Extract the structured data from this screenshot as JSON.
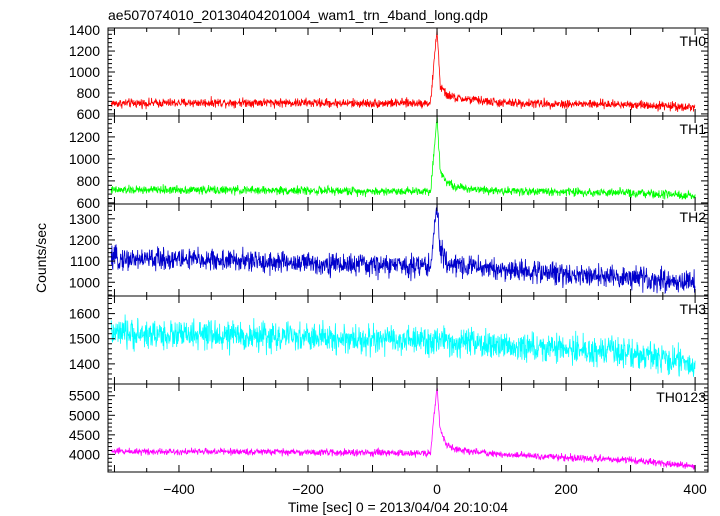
{
  "chart_data": {
    "type": "line",
    "title": "ae507074010_20130404201004_wam1_trn_4band_long.qdp",
    "xlabel": "Time [sec] 0 = 2013/04/04 20:10:04",
    "ylabel": "Counts/sec",
    "xlim": [
      -510,
      420
    ],
    "xticks": [
      -400,
      -200,
      0,
      200,
      400
    ],
    "xtick_labels": [
      "−400",
      "−200",
      "0",
      "200",
      "400"
    ],
    "grid": false,
    "legend": "none",
    "panels": [
      {
        "label": "TH0",
        "color": "#ff0000",
        "ylim": [
          580,
          1420
        ],
        "yticks": [
          600,
          800,
          1000,
          1200,
          1400
        ],
        "yticks_labeled": [
          600,
          800,
          1000,
          1200,
          1400
        ],
        "points": [
          [
            -505,
            700
          ],
          [
            -400,
            705
          ],
          [
            -300,
            710
          ],
          [
            -200,
            705
          ],
          [
            -100,
            700
          ],
          [
            -10,
            705
          ],
          [
            0,
            1420
          ],
          [
            5,
            860
          ],
          [
            15,
            780
          ],
          [
            30,
            750
          ],
          [
            100,
            705
          ],
          [
            200,
            695
          ],
          [
            300,
            690
          ],
          [
            400,
            665
          ]
        ],
        "noise": 45
      },
      {
        "label": "TH1",
        "color": "#00ff00",
        "ylim": [
          590,
          1390
        ],
        "yticks": [
          600,
          800,
          1000,
          1200
        ],
        "yticks_labeled": [
          600,
          800,
          1000,
          1200
        ],
        "points": [
          [
            -505,
            715
          ],
          [
            -400,
            720
          ],
          [
            -300,
            715
          ],
          [
            -200,
            712
          ],
          [
            -100,
            705
          ],
          [
            -10,
            710
          ],
          [
            0,
            1380
          ],
          [
            5,
            900
          ],
          [
            15,
            790
          ],
          [
            30,
            740
          ],
          [
            100,
            710
          ],
          [
            200,
            700
          ],
          [
            300,
            690
          ],
          [
            400,
            660
          ]
        ],
        "noise": 40
      },
      {
        "label": "TH2",
        "color": "#0000cc",
        "ylim": [
          935,
          1370
        ],
        "yticks": [
          1000,
          1100,
          1200,
          1300
        ],
        "yticks_labeled": [
          1000,
          1100,
          1200,
          1300
        ],
        "points": [
          [
            -505,
            1110
          ],
          [
            -400,
            1110
          ],
          [
            -300,
            1100
          ],
          [
            -200,
            1090
          ],
          [
            -100,
            1080
          ],
          [
            -10,
            1080
          ],
          [
            0,
            1360
          ],
          [
            5,
            1150
          ],
          [
            15,
            1090
          ],
          [
            100,
            1060
          ],
          [
            200,
            1040
          ],
          [
            300,
            1020
          ],
          [
            400,
            1000
          ]
        ],
        "noise": 55
      },
      {
        "label": "TH3",
        "color": "#00ffff",
        "ylim": [
          1320,
          1670
        ],
        "yticks": [
          1400,
          1500,
          1600
        ],
        "yticks_labeled": [
          1400,
          1500,
          1600
        ],
        "points": [
          [
            -505,
            1520
          ],
          [
            -400,
            1515
          ],
          [
            -300,
            1510
          ],
          [
            -200,
            1505
          ],
          [
            -100,
            1495
          ],
          [
            0,
            1490
          ],
          [
            100,
            1470
          ],
          [
            200,
            1460
          ],
          [
            300,
            1440
          ],
          [
            380,
            1410
          ],
          [
            400,
            1390
          ]
        ],
        "noise": 60
      },
      {
        "label": "TH0123",
        "color": "#ff00ff",
        "ylim": [
          3550,
          5800
        ],
        "yticks": [
          4000,
          4500,
          5000,
          5500
        ],
        "yticks_labeled": [
          4000,
          4500,
          5000,
          5500
        ],
        "points": [
          [
            -505,
            4080
          ],
          [
            -400,
            4075
          ],
          [
            -300,
            4070
          ],
          [
            -200,
            4055
          ],
          [
            -100,
            4040
          ],
          [
            -10,
            4030
          ],
          [
            0,
            5750
          ],
          [
            5,
            4600
          ],
          [
            15,
            4250
          ],
          [
            30,
            4120
          ],
          [
            100,
            4000
          ],
          [
            200,
            3920
          ],
          [
            300,
            3850
          ],
          [
            400,
            3700
          ]
        ],
        "noise": 90
      }
    ]
  }
}
